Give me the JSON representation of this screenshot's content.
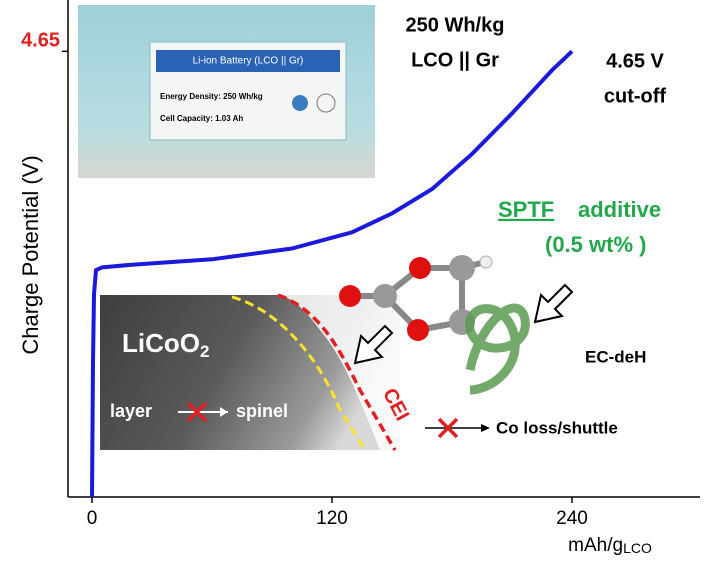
{
  "chart_data": {
    "type": "line",
    "y_label": "Charge Potential (V)",
    "x_label": {
      "text": "mAh/g",
      "sub": "LCO"
    },
    "xlim": [
      -12,
      304
    ],
    "xticks": [
      0,
      120,
      240
    ],
    "ylim": [
      3.0,
      4.84
    ],
    "yticks": [
      4.65
    ],
    "x": [
      0,
      0.5,
      1,
      2,
      5,
      20,
      60,
      100,
      130,
      150,
      170,
      190,
      210,
      230,
      240
    ],
    "series": [
      {
        "color": "#1a1adb",
        "values": [
          3.0,
          3.5,
          3.75,
          3.84,
          3.85,
          3.86,
          3.88,
          3.92,
          3.98,
          4.05,
          4.14,
          4.27,
          4.42,
          4.58,
          4.65
        ]
      }
    ],
    "annotations": {
      "cell": [
        "250 Wh/kg",
        "LCO || Gr"
      ],
      "cutoff": [
        "4.65 V",
        "cut-off"
      ],
      "battery_label": {
        "title": "Li-ion Battery (LCO || Gr)",
        "energy": "Energy Density: 250 Wh/kg",
        "capacity": "Cell Capacity: 1.03 Ah"
      },
      "additive": {
        "name": "SPTF",
        "word": "additive",
        "amount": "(0.5 wt% )"
      },
      "radical": "EC-deH",
      "cathode": {
        "main": "LiCoO",
        "sub": "2"
      },
      "transform": [
        "layer",
        "spinel"
      ],
      "cei": "CEI",
      "loss": "Co loss/shuttle"
    }
  }
}
